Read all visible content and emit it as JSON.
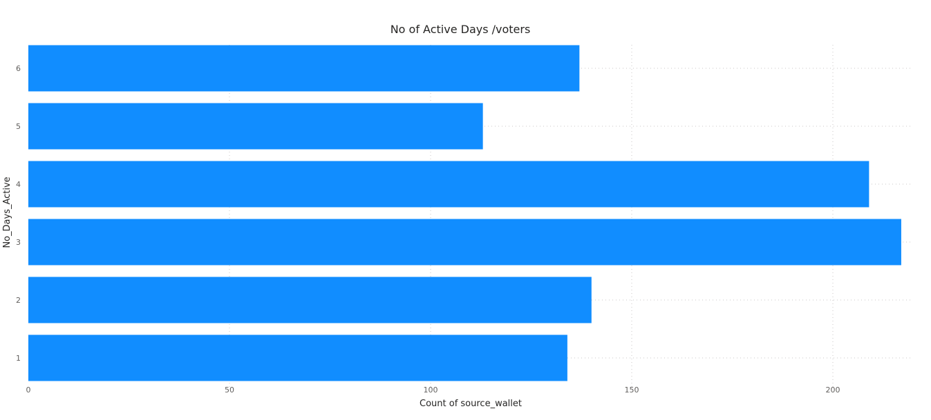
{
  "chart_data": {
    "type": "bar",
    "orientation": "horizontal",
    "title": "No of Active Days /voters",
    "xlabel": "Count of source_wallet",
    "ylabel": "No_Days_Active",
    "categories": [
      "1",
      "2",
      "3",
      "4",
      "5",
      "6"
    ],
    "values": [
      134,
      140,
      217,
      209,
      113,
      137
    ],
    "xlim": [
      0,
      220
    ],
    "xticks": [
      0,
      50,
      100,
      150,
      200
    ],
    "grid": true,
    "legend": "none",
    "bar_color": "#118DFF"
  }
}
